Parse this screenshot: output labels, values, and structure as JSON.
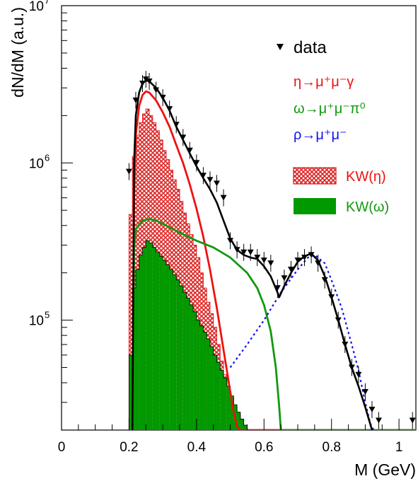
{
  "chart_data": {
    "type": "line",
    "title": "",
    "xlabel": "M (GeV)",
    "ylabel": "dN/dM (a.u.)",
    "xlim": [
      0,
      1.05
    ],
    "ylim": [
      20000,
      10000000
    ],
    "yscale": "log",
    "x_ticks": [
      {
        "value": 0,
        "label": "0"
      },
      {
        "value": 0.2,
        "label": "0.2"
      },
      {
        "value": 0.4,
        "label": "0.4"
      },
      {
        "value": 0.6,
        "label": "0.6"
      },
      {
        "value": 0.8,
        "label": "0.8"
      },
      {
        "value": 1,
        "label": "1"
      }
    ],
    "y_ticks": [
      {
        "value": 100000,
        "base": "10",
        "exp": "5"
      },
      {
        "value": 1000000,
        "base": "10",
        "exp": "6"
      },
      {
        "value": 10000000,
        "base": "10",
        "exp": "7"
      }
    ],
    "legend_placement": "top-right",
    "legend": {
      "data": "data",
      "eta_line": "η→μ⁺μ⁻γ",
      "omega_line": "ω→μ⁺μ⁻π⁰",
      "rho_line": "ρ→μ⁺μ⁻",
      "kw_eta": "KW(η)",
      "kw_omega": "KW(ω)"
    },
    "colors": {
      "data": "#000000",
      "eta": "#ee1111",
      "omega": "#119911",
      "rho": "#1111ee",
      "total": "#000000",
      "kw_eta_fill": "#dd2222",
      "kw_omega_fill": "#009900"
    },
    "series": [
      {
        "name": "data",
        "kind": "points",
        "x": [
          0.2,
          0.22,
          0.24,
          0.25,
          0.26,
          0.28,
          0.3,
          0.32,
          0.34,
          0.36,
          0.38,
          0.4,
          0.42,
          0.44,
          0.46,
          0.48,
          0.5,
          0.52,
          0.54,
          0.56,
          0.58,
          0.6,
          0.62,
          0.64,
          0.66,
          0.68,
          0.7,
          0.72,
          0.74,
          0.76,
          0.78,
          0.8,
          0.82,
          0.84,
          0.86,
          0.88,
          0.9,
          0.92,
          0.94,
          1.04
        ],
        "y": [
          880000,
          2500000,
          3200000,
          3400000,
          3300000,
          2900000,
          2600000,
          2200000,
          1750000,
          1450000,
          1200000,
          1000000,
          830000,
          780000,
          740000,
          600000,
          320000,
          280000,
          270000,
          270000,
          250000,
          240000,
          230000,
          160000,
          185000,
          210000,
          240000,
          250000,
          260000,
          230000,
          180000,
          140000,
          100000,
          70000,
          50000,
          45000,
          35000,
          27000,
          23000,
          23000
        ]
      },
      {
        "name": "η→μ⁺μ⁻γ",
        "kind": "line",
        "x": [
          0.21,
          0.215,
          0.22,
          0.23,
          0.24,
          0.25,
          0.26,
          0.28,
          0.3,
          0.32,
          0.34,
          0.36,
          0.38,
          0.4,
          0.42,
          0.44,
          0.46,
          0.48,
          0.5,
          0.51,
          0.52,
          0.53,
          0.55,
          0.6,
          1.05
        ],
        "y": [
          20000,
          600000,
          1500000,
          2300000,
          2700000,
          2850000,
          2800000,
          2500000,
          2100000,
          1700000,
          1300000,
          1000000,
          730000,
          510000,
          340000,
          210000,
          120000,
          65000,
          35000,
          26000,
          21000,
          20000,
          20000,
          20000,
          20000
        ]
      },
      {
        "name": "ω→μ⁺μ⁻π⁰",
        "kind": "line",
        "x": [
          0.21,
          0.215,
          0.22,
          0.24,
          0.26,
          0.28,
          0.3,
          0.35,
          0.4,
          0.45,
          0.5,
          0.55,
          0.58,
          0.6,
          0.62,
          0.635,
          0.645,
          0.65,
          0.655,
          0.7,
          1.05
        ],
        "y": [
          20000,
          280000,
          380000,
          430000,
          440000,
          430000,
          410000,
          360000,
          320000,
          290000,
          250000,
          200000,
          160000,
          125000,
          85000,
          50000,
          28000,
          20000,
          20000,
          20000,
          20000
        ]
      },
      {
        "name": "ρ→μ⁺μ⁻",
        "kind": "line",
        "style": "dotted",
        "x": [
          0.5,
          0.55,
          0.6,
          0.65,
          0.7,
          0.73,
          0.75,
          0.78,
          0.8,
          0.83,
          0.86,
          0.88,
          0.9,
          0.915,
          0.925
        ],
        "y": [
          50000,
          70000,
          100000,
          150000,
          210000,
          250000,
          260000,
          230000,
          180000,
          120000,
          70000,
          48000,
          30000,
          22000,
          20000
        ]
      },
      {
        "name": "total",
        "kind": "line",
        "x": [
          0.21,
          0.215,
          0.22,
          0.23,
          0.24,
          0.25,
          0.26,
          0.28,
          0.3,
          0.32,
          0.34,
          0.36,
          0.38,
          0.4,
          0.42,
          0.44,
          0.46,
          0.48,
          0.5,
          0.52,
          0.54,
          0.56,
          0.58,
          0.6,
          0.62,
          0.64,
          0.645,
          0.66,
          0.68,
          0.7,
          0.72,
          0.74,
          0.76,
          0.78,
          0.8,
          0.82,
          0.84,
          0.86,
          0.88,
          0.9,
          0.92
        ],
        "y": [
          20000,
          1000000,
          2000000,
          2800000,
          3200000,
          3350000,
          3300000,
          3000000,
          2600000,
          2150000,
          1700000,
          1400000,
          1150000,
          950000,
          800000,
          680000,
          560000,
          430000,
          330000,
          280000,
          260000,
          250000,
          245000,
          220000,
          190000,
          150000,
          140000,
          165000,
          200000,
          235000,
          255000,
          265000,
          240000,
          190000,
          140000,
          100000,
          70000,
          50000,
          38000,
          28000,
          20000
        ]
      },
      {
        "name": "KW(η)",
        "kind": "histogram",
        "fill": "hatched",
        "edges": [
          0.2,
          0.21,
          0.22,
          0.23,
          0.24,
          0.25,
          0.26,
          0.27,
          0.28,
          0.29,
          0.3,
          0.31,
          0.32,
          0.33,
          0.34,
          0.35,
          0.36,
          0.37,
          0.38,
          0.39,
          0.4,
          0.41,
          0.42,
          0.43,
          0.44,
          0.45,
          0.46,
          0.47,
          0.48,
          0.49,
          0.5,
          0.51,
          0.52,
          0.53,
          0.54,
          0.55
        ],
        "values": [
          470000,
          1100000,
          1500000,
          1800000,
          2050000,
          2200000,
          2000000,
          1800000,
          1600000,
          1400000,
          1200000,
          1050000,
          900000,
          780000,
          680000,
          570000,
          480000,
          410000,
          350000,
          300000,
          250000,
          200000,
          160000,
          130000,
          110000,
          90000,
          70000,
          55000,
          45000,
          38000,
          32000,
          28000,
          25000,
          22000,
          20500
        ]
      },
      {
        "name": "KW(ω)",
        "kind": "histogram",
        "fill": "solid",
        "edges": [
          0.2,
          0.21,
          0.22,
          0.23,
          0.24,
          0.25,
          0.26,
          0.27,
          0.28,
          0.29,
          0.3,
          0.31,
          0.32,
          0.33,
          0.34,
          0.35,
          0.36,
          0.37,
          0.38,
          0.39,
          0.4,
          0.41,
          0.42,
          0.43,
          0.44,
          0.45,
          0.46,
          0.47,
          0.48,
          0.49,
          0.5,
          0.51,
          0.52,
          0.53,
          0.54,
          0.55,
          0.56
        ],
        "values": [
          60000,
          160000,
          210000,
          260000,
          290000,
          320000,
          310000,
          290000,
          270000,
          255000,
          240000,
          225000,
          210000,
          195000,
          180000,
          165000,
          150000,
          138000,
          125000,
          113000,
          100000,
          92000,
          84000,
          76000,
          68000,
          60000,
          54000,
          48000,
          43000,
          38000,
          33000,
          29000,
          26000,
          23500,
          21500,
          20000
        ]
      }
    ]
  }
}
